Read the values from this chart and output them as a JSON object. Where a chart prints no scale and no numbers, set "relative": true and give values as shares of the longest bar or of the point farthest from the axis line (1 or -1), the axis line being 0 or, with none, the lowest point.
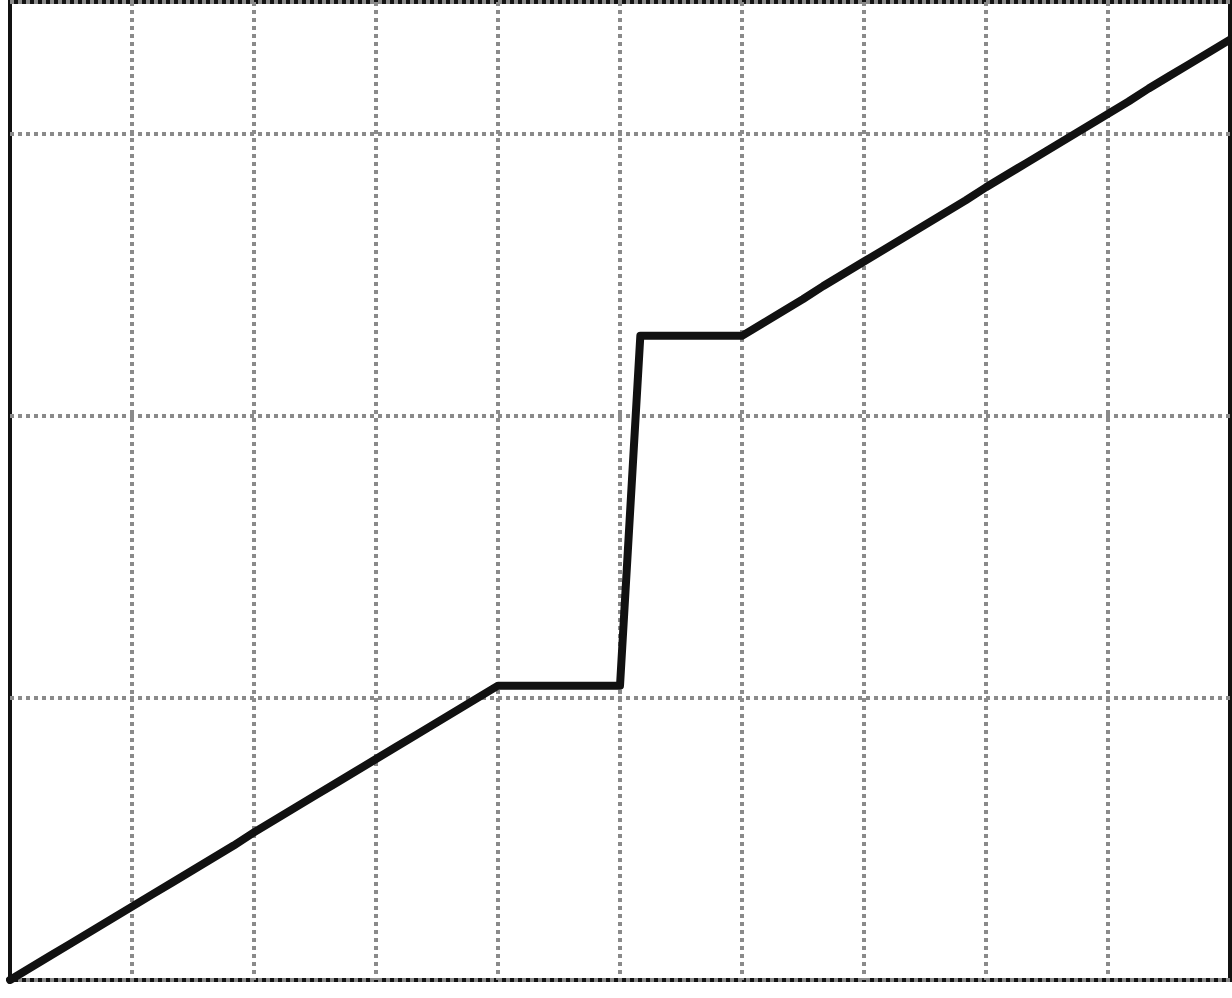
{
  "chart_data": {
    "type": "line",
    "relative": true,
    "categories": [
      null,
      null,
      null,
      null,
      null,
      null,
      null,
      null,
      null,
      null,
      null,
      null,
      null,
      null,
      null,
      null,
      null,
      null,
      null,
      null,
      null,
      null,
      null,
      null,
      null,
      null,
      null,
      null,
      null,
      null,
      null,
      null,
      null,
      null,
      null,
      null,
      null,
      null,
      null,
      null,
      null,
      null,
      null,
      null,
      null,
      null,
      null,
      null,
      null,
      null,
      null,
      null,
      null,
      null,
      null,
      null,
      null,
      null,
      null,
      null,
      null
    ],
    "series": [
      {
        "color": "#111111",
        "values": [
          0,
          0.013,
          0.026,
          0.039,
          0.052,
          0.065,
          0.078,
          0.091,
          0.104,
          0.117,
          0.13,
          0.143,
          0.157,
          0.17,
          0.183,
          0.196,
          0.209,
          0.222,
          0.235,
          0.248,
          0.261,
          0.274,
          0.287,
          0.3,
          0.313,
          0.313,
          0.313,
          0.313,
          0.313,
          0.313,
          0.313,
          0.685,
          0.685,
          0.685,
          0.685,
          0.685,
          0.685,
          0.698,
          0.711,
          0.724,
          0.738,
          0.751,
          0.764,
          0.777,
          0.79,
          0.803,
          0.816,
          0.829,
          0.843,
          0.856,
          0.869,
          0.882,
          0.895,
          0.908,
          0.921,
          0.934,
          0.948,
          0.961,
          0.974,
          0.987,
          1
        ]
      }
    ],
    "tick_labels": false,
    "grid": true,
    "marker": "none",
    "line_style": "solid"
  }
}
